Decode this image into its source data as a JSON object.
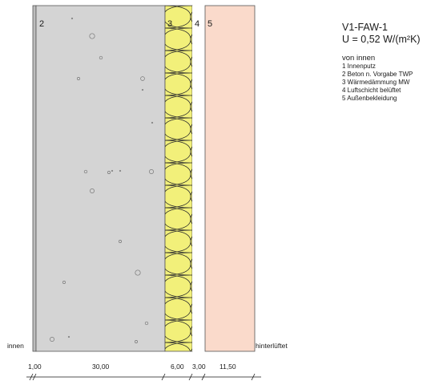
{
  "layers": [
    {
      "num": "2",
      "color": "#d4d4d4"
    },
    {
      "num": "3",
      "color": "#f2f07a"
    },
    {
      "num": "4",
      "color": "#ffffff"
    },
    {
      "num": "5",
      "color": "#fadacb"
    }
  ],
  "labels": {
    "inside": "innen",
    "outside": "hinterlüftet"
  },
  "dimensions": [
    "1,00",
    "30,00",
    "6,00",
    "3,00",
    "11,50"
  ],
  "legend": {
    "title": "V1-FAW-1",
    "u_value": "U = 0,52 W/(m²K)",
    "subtitle": "von innen",
    "items": [
      "1 Innenputz",
      "2 Beton n. Vorgabe TWP",
      "3 Wärmedämmung MW",
      "4 Luftschicht belüftet",
      "5 Außenbekleidung"
    ]
  }
}
